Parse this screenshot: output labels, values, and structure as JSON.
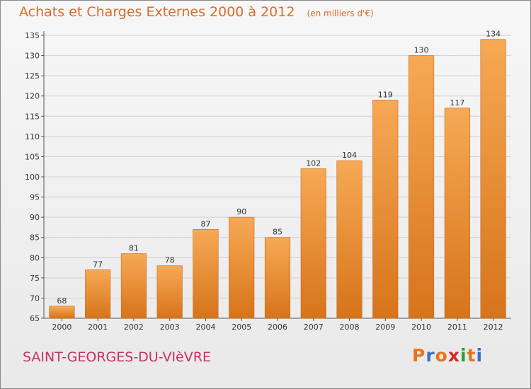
{
  "header": {
    "title": "Achats et Charges Externes 2000 à 2012",
    "unit": "(en milliers d'€)"
  },
  "footer": {
    "commune": "SAINT-GEORGES-DU-VIèVRE",
    "logo": "Proxiti",
    "logo_colors": [
      "#e8731e",
      "#3a6fc4",
      "#e8731e",
      "#d62a2a",
      "#2f9a3a",
      "#e8731e",
      "#3a6fc4"
    ]
  },
  "colors": {
    "bar_light": "#f6a550",
    "bar_dark": "#d9781f",
    "grid": "#cfcfcf",
    "title": "#e06a26",
    "commune": "#c8325a"
  },
  "chart_data": {
    "type": "bar",
    "title": "Achats et Charges Externes 2000 à 2012",
    "subtitle": "(en milliers d'€)",
    "xlabel": "",
    "ylabel": "",
    "categories": [
      "2000",
      "2001",
      "2002",
      "2003",
      "2004",
      "2005",
      "2006",
      "2007",
      "2008",
      "2009",
      "2010",
      "2011",
      "2012"
    ],
    "values": [
      68,
      77,
      81,
      78,
      87,
      90,
      85,
      102,
      104,
      119,
      130,
      117,
      134
    ],
    "ylim": [
      65,
      135
    ],
    "yticks": [
      65,
      70,
      75,
      80,
      85,
      90,
      95,
      100,
      105,
      110,
      115,
      120,
      125,
      130,
      135
    ],
    "grid": true
  }
}
